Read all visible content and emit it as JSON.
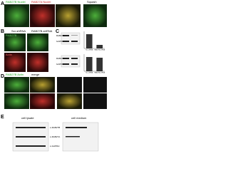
{
  "panel_a": {
    "label": "A",
    "titles": [
      "RAB27B Nuclei",
      "RAB27A Nuclei",
      "merge",
      "Squash"
    ]
  },
  "panel_b": {
    "label": "B",
    "columns": [
      "Scr-shRNA",
      "RAB27B-shRNA"
    ],
    "rows": [
      "RAB27B",
      "Actin"
    ]
  },
  "panel_c": {
    "label": "C",
    "columns": [
      "Scr-shRNA",
      "RAB27B-shRNA"
    ],
    "blots": [
      {
        "bands": [
          "RAB27B",
          "GAPDH"
        ]
      },
      {
        "bands": [
          "RAB27A",
          "GAPDH"
        ]
      }
    ],
    "charts": [
      {
        "type": "bar",
        "categories": [
          "Scr-shRNA",
          "RAB27B-shRNA"
        ],
        "values": [
          1.0,
          0.25
        ],
        "ylim": [
          0,
          1.2
        ],
        "color": "#333333"
      },
      {
        "type": "bar",
        "categories": [
          "Scr-shRNA",
          "RAB27B-shRNA"
        ],
        "values": [
          1.0,
          0.95
        ],
        "ylim": [
          0,
          1.2
        ],
        "color": "#333333"
      }
    ]
  },
  "panel_d": {
    "label": "D",
    "titles": [
      "RAB27B Actin",
      "merge"
    ]
  },
  "panel_e": {
    "label": "E",
    "groups": [
      "cell lysate",
      "cell medium"
    ],
    "bands": [
      "α-RAB27B",
      "α-RAB27A",
      "α-GAPDH"
    ]
  }
}
